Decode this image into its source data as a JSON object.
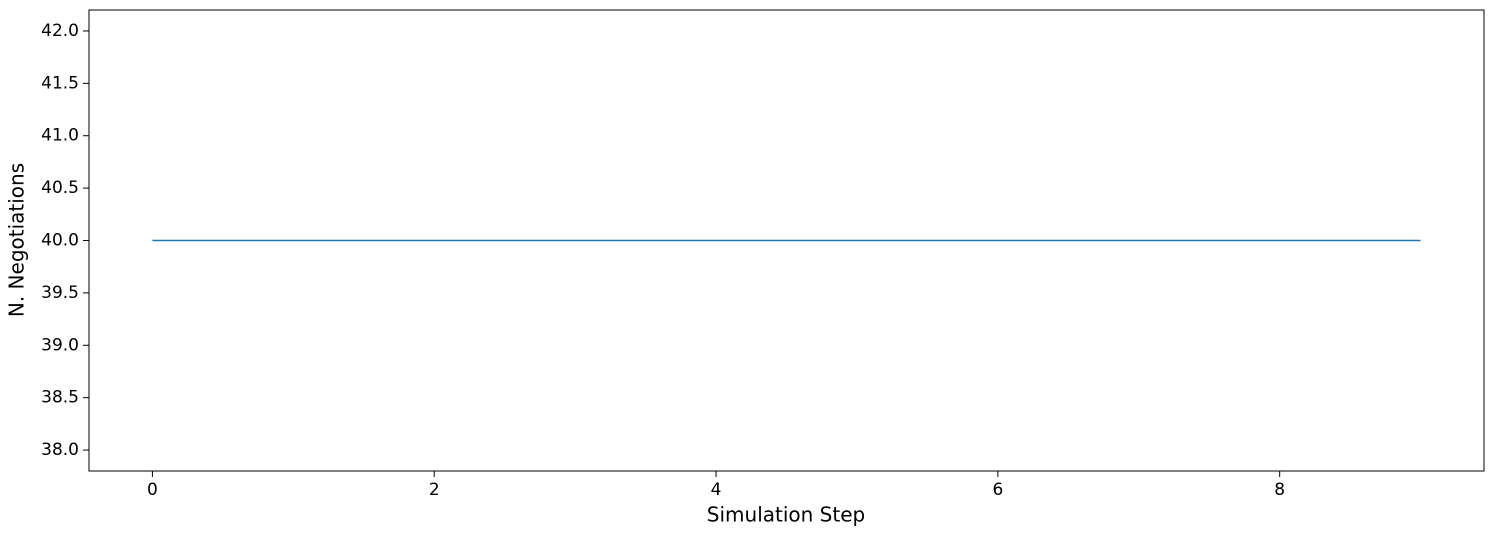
{
  "chart_data": {
    "type": "line",
    "x_label": "Simulation Step",
    "y_label": "N. Negotiations",
    "x": [
      0,
      1,
      2,
      3,
      4,
      5,
      6,
      7,
      8,
      9
    ],
    "series": [
      {
        "name": "N. Negotiations",
        "color": "#1f77b4",
        "values": [
          40,
          40,
          40,
          40,
          40,
          40,
          40,
          40,
          40,
          40
        ]
      }
    ],
    "xlim": [
      -0.45,
      9.45
    ],
    "ylim": [
      37.8,
      42.2
    ],
    "xticks": [
      0,
      2,
      4,
      6,
      8
    ],
    "yticks": [
      {
        "value": 38,
        "label": "38.0"
      },
      38.5,
      {
        "value": 39,
        "label": "39.0"
      },
      39.5,
      {
        "value": 40,
        "label": "40.0"
      },
      40.5,
      {
        "value": 41,
        "label": "41.0"
      },
      41.5,
      {
        "value": 42,
        "label": "42.0"
      }
    ],
    "grid": false
  }
}
